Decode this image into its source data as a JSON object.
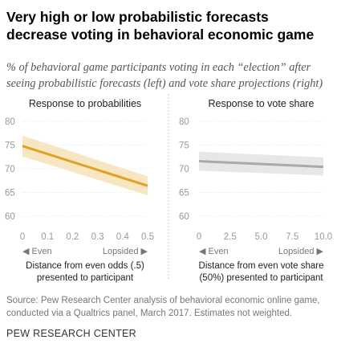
{
  "title": "Very high or low probabilistic forecasts decrease voting in behavioral economic game",
  "subtitle": "% of behavioral game participants voting in each “election” after seeing probabilistic forecasts (left) and vote share projections (right)",
  "source": "Source: Pew Research Center analysis of behavioral economic online game, conducted via a Qualtrics panel, March 2017. Estimates not weighted.",
  "brand": "PEW RESEARCH CENTER",
  "colors": {
    "left_line": "#E0A127",
    "left_band": "#F8E6C2",
    "right_line": "#AAAAAA",
    "right_band": "#E7E7E7"
  },
  "chart_data": [
    {
      "type": "line",
      "title": "Response to probabilities",
      "xlabel": [
        "Distance from even odds (.5)",
        "presented to participant"
      ],
      "x_ticks": [
        "0",
        "0.1",
        "0.2",
        "0.3",
        "0.4",
        "0.5"
      ],
      "y_ticks": [
        "80",
        "75",
        "70",
        "65",
        "60"
      ],
      "xlim": [
        0,
        0.5
      ],
      "ylim": [
        58,
        80
      ],
      "direction_left": "Even",
      "direction_right": "Lopsided",
      "series": [
        {
          "x": [
            0,
            0.5
          ],
          "y": [
            74.8,
            66.4
          ],
          "lower": [
            72.6,
            64.4
          ],
          "upper": [
            77.0,
            68.4
          ]
        }
      ]
    },
    {
      "type": "line",
      "title": "Response to vote share",
      "xlabel": [
        "Distance from even vote share",
        "(50%) presented to participant"
      ],
      "x_ticks": [
        "0",
        "2.5",
        "5.0",
        "7.5",
        "10.0"
      ],
      "y_ticks": [
        "80",
        "75",
        "70",
        "65",
        "60"
      ],
      "xlim": [
        0,
        10
      ],
      "ylim": [
        58,
        80
      ],
      "direction_left": "Even",
      "direction_right": "Lopsided",
      "series": [
        {
          "x": [
            0,
            10
          ],
          "y": [
            71.6,
            70.4
          ],
          "lower": [
            69.6,
            68.6
          ],
          "upper": [
            73.6,
            72.4
          ]
        }
      ]
    }
  ]
}
